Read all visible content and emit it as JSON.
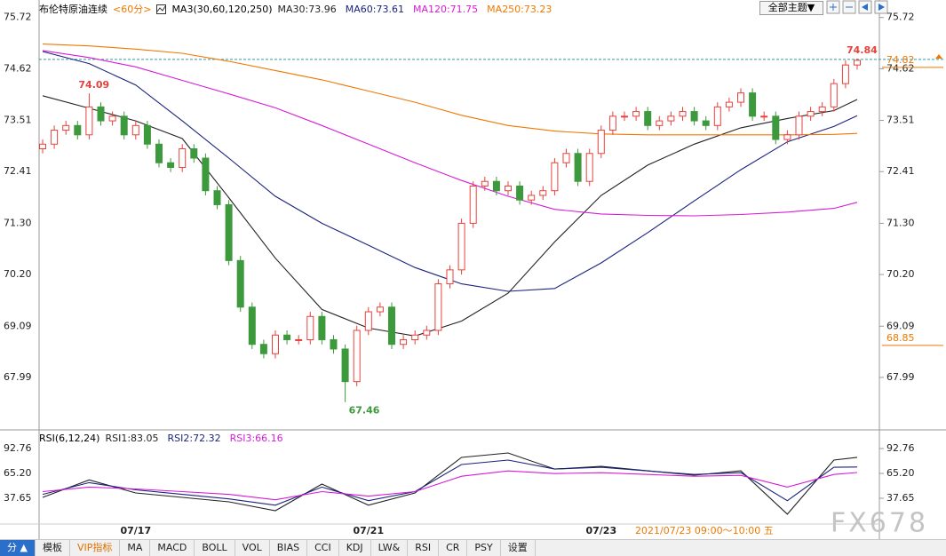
{
  "header": {
    "title": "布伦特原油连续",
    "period": "<60分>",
    "indicator": "MA3(30,60,120,250)",
    "theme_button": "全部主题▼"
  },
  "chart_data": [
    {
      "type": "candlestick",
      "categories": [
        null,
        null,
        null,
        null,
        null,
        null,
        null,
        null,
        "07/17",
        null,
        null,
        null,
        null,
        null,
        null,
        null,
        null,
        null,
        null,
        null,
        null,
        null,
        null,
        null,
        null,
        null,
        null,
        null,
        "07/21",
        null,
        null,
        null,
        null,
        null,
        null,
        null,
        null,
        null,
        null,
        null,
        null,
        null,
        null,
        null,
        null,
        null,
        null,
        null,
        "07/23",
        null,
        null,
        null,
        null,
        null,
        null,
        null,
        null,
        null,
        null,
        null,
        null,
        null,
        null,
        null,
        null,
        null,
        null,
        null,
        null,
        null,
        null
      ],
      "open": [
        72.9,
        73.0,
        73.3,
        73.4,
        73.2,
        73.8,
        73.5,
        73.6,
        73.2,
        73.4,
        73.0,
        72.6,
        72.5,
        72.9,
        72.7,
        72.0,
        71.7,
        70.5,
        69.5,
        68.7,
        68.5,
        68.9,
        68.8,
        68.8,
        69.3,
        68.8,
        68.6,
        67.9,
        69.0,
        69.4,
        69.5,
        68.7,
        68.8,
        68.9,
        69.0,
        70.0,
        70.3,
        71.3,
        72.1,
        72.2,
        72.0,
        72.1,
        71.8,
        71.9,
        72.0,
        72.6,
        72.8,
        72.2,
        72.8,
        73.3,
        73.6,
        73.6,
        73.7,
        73.4,
        73.5,
        73.6,
        73.7,
        73.5,
        73.4,
        73.8,
        73.9,
        74.1,
        73.6,
        73.6,
        73.1,
        73.2,
        73.6,
        73.7,
        73.8,
        74.3,
        74.7
      ],
      "high": [
        73.1,
        73.4,
        73.5,
        73.5,
        74.09,
        73.9,
        73.7,
        73.7,
        73.5,
        73.5,
        73.1,
        72.7,
        73.0,
        73.0,
        72.8,
        72.1,
        71.8,
        70.6,
        69.6,
        68.8,
        69.0,
        69.0,
        68.9,
        69.4,
        69.4,
        68.9,
        68.7,
        69.1,
        69.5,
        69.6,
        69.6,
        68.9,
        69.0,
        69.1,
        70.1,
        70.4,
        71.4,
        72.2,
        72.3,
        72.3,
        72.2,
        72.2,
        72.0,
        72.1,
        72.7,
        72.9,
        72.9,
        72.9,
        73.4,
        73.7,
        73.7,
        73.8,
        73.8,
        73.6,
        73.7,
        73.8,
        73.8,
        73.6,
        73.9,
        74.0,
        74.2,
        74.2,
        73.7,
        73.7,
        73.3,
        73.7,
        73.8,
        73.9,
        74.4,
        74.8,
        74.84
      ],
      "low": [
        72.8,
        72.9,
        73.2,
        73.1,
        73.1,
        73.4,
        73.4,
        73.1,
        73.1,
        72.9,
        72.5,
        72.4,
        72.4,
        72.6,
        71.9,
        71.6,
        70.4,
        69.4,
        68.6,
        68.4,
        68.4,
        68.7,
        68.7,
        68.7,
        68.7,
        68.5,
        67.46,
        67.8,
        68.9,
        69.3,
        68.6,
        68.6,
        68.7,
        68.8,
        68.9,
        69.9,
        70.2,
        71.2,
        72.0,
        71.9,
        71.9,
        71.7,
        71.7,
        71.8,
        71.9,
        72.5,
        72.1,
        72.1,
        72.7,
        73.2,
        73.5,
        73.5,
        73.3,
        73.3,
        73.4,
        73.5,
        73.4,
        73.3,
        73.3,
        73.7,
        73.8,
        73.5,
        73.5,
        73.0,
        73.0,
        73.1,
        73.5,
        73.6,
        73.7,
        74.2,
        74.6
      ],
      "close": [
        73.0,
        73.3,
        73.4,
        73.2,
        73.8,
        73.5,
        73.6,
        73.2,
        73.4,
        73.0,
        72.6,
        72.5,
        72.9,
        72.7,
        72.0,
        71.7,
        70.5,
        69.5,
        68.7,
        68.5,
        68.9,
        68.8,
        68.8,
        69.3,
        68.8,
        68.6,
        67.9,
        69.0,
        69.4,
        69.5,
        68.7,
        68.8,
        68.9,
        69.0,
        70.0,
        70.3,
        71.3,
        72.1,
        72.2,
        72.0,
        72.1,
        71.8,
        71.9,
        72.0,
        72.6,
        72.8,
        72.2,
        72.8,
        73.3,
        73.6,
        73.6,
        73.7,
        73.4,
        73.5,
        73.6,
        73.7,
        73.5,
        73.4,
        73.8,
        73.9,
        74.1,
        73.6,
        73.6,
        73.1,
        73.2,
        73.6,
        73.7,
        73.8,
        74.3,
        74.7,
        74.8
      ],
      "up_color": "#e8413c",
      "down_color": "#3c9a3c",
      "ylim": [
        66.94,
        76
      ],
      "yticks": [
        75.72,
        74.62,
        73.51,
        72.41,
        {
          "value": 71.3,
          "label": "71.30"
        },
        {
          "value": 70.2,
          "label": "70.20"
        },
        69.09,
        67.99
      ],
      "series": [
        {
          "name": "MA30:73.96",
          "color": "#222222",
          "x": [
            0,
            4,
            8,
            12,
            16,
            20,
            24,
            28,
            32,
            36,
            40,
            44,
            48,
            52,
            56,
            60,
            64,
            68,
            70
          ],
          "values": [
            74.04,
            73.77,
            73.5,
            73.12,
            71.85,
            70.55,
            69.45,
            69.05,
            68.88,
            69.2,
            69.8,
            70.9,
            71.9,
            72.55,
            73.0,
            73.35,
            73.55,
            73.72,
            73.96
          ]
        },
        {
          "name": "MA60:73.61",
          "color": "#1a237e",
          "x": [
            0,
            4,
            8,
            12,
            16,
            20,
            24,
            28,
            32,
            36,
            40,
            44,
            48,
            52,
            56,
            60,
            64,
            68,
            70
          ],
          "values": [
            74.99,
            74.73,
            74.27,
            73.5,
            72.7,
            71.88,
            71.3,
            70.83,
            70.35,
            70.0,
            69.84,
            69.9,
            70.45,
            71.1,
            71.78,
            72.45,
            73.05,
            73.38,
            73.61
          ]
        },
        {
          "name": "MA120:71.75",
          "color": "#d81bd8",
          "x": [
            0,
            4,
            8,
            12,
            16,
            20,
            24,
            28,
            32,
            36,
            40,
            44,
            48,
            52,
            56,
            60,
            64,
            68,
            70
          ],
          "values": [
            75.01,
            74.86,
            74.66,
            74.37,
            74.08,
            73.78,
            73.4,
            73.0,
            72.6,
            72.22,
            71.88,
            71.6,
            71.5,
            71.47,
            71.46,
            71.49,
            71.54,
            71.62,
            71.75
          ]
        },
        {
          "name": "MA250:73.23",
          "color": "#f07800",
          "x": [
            0,
            4,
            8,
            12,
            16,
            20,
            24,
            28,
            32,
            36,
            40,
            44,
            48,
            52,
            56,
            60,
            64,
            68,
            70
          ],
          "values": [
            75.15,
            75.11,
            75.04,
            74.95,
            74.78,
            74.58,
            74.38,
            74.14,
            73.9,
            73.62,
            73.4,
            73.28,
            73.22,
            73.2,
            73.2,
            73.2,
            73.2,
            73.21,
            73.23
          ]
        }
      ],
      "annotations": [
        {
          "x": 4,
          "value": 74.09
        },
        {
          "x": 26,
          "value": 67.46
        },
        {
          "x": 70,
          "value": 74.84
        }
      ],
      "price_markers": [
        {
          "value": 74.82,
          "color": "#f07800",
          "line_style": "dashed"
        },
        {
          "value": 68.85,
          "color": "#f07800"
        }
      ]
    },
    {
      "type": "line",
      "title": "RSI(6,12,24)",
      "time_label": "2021/07/23 09:00～10:00 五",
      "ylim": [
        9.1,
        105.55
      ],
      "yticks": [
        92.76,
        {
          "value": 65.2,
          "label": "65.20"
        },
        37.65
      ],
      "series": [
        {
          "name": "RSI1:83.05",
          "color": "#222222",
          "x": [
            0,
            4,
            8,
            12,
            16,
            20,
            24,
            28,
            32,
            36,
            40,
            44,
            48,
            52,
            56,
            60,
            64,
            68,
            70
          ],
          "values": [
            38.6,
            58,
            43.5,
            38.6,
            33.7,
            23.9,
            53.4,
            30,
            43.5,
            82.9,
            87.8,
            70,
            73,
            68.1,
            63.2,
            68.1,
            20,
            80,
            83.05
          ]
        },
        {
          "name": "RSI2:72.32",
          "color": "#1a237e",
          "x": [
            0,
            4,
            8,
            12,
            16,
            20,
            24,
            28,
            32,
            36,
            40,
            44,
            48,
            52,
            56,
            60,
            64,
            68,
            70
          ],
          "values": [
            42,
            55,
            47,
            42,
            37,
            30,
            50,
            35,
            45,
            75,
            80,
            70,
            72,
            68,
            64,
            66,
            35,
            72,
            72.32
          ]
        },
        {
          "name": "RSI3:66.16",
          "color": "#d81bd8",
          "x": [
            0,
            4,
            8,
            12,
            16,
            20,
            24,
            28,
            32,
            36,
            40,
            44,
            48,
            52,
            56,
            60,
            64,
            68,
            70
          ],
          "values": [
            45,
            50,
            48,
            45,
            42,
            36,
            45,
            40,
            45,
            62,
            68,
            65,
            66,
            64,
            62,
            63,
            50,
            64,
            66.16
          ]
        }
      ]
    }
  ],
  "toolbar": {
    "tabs": [
      "分 ▲",
      "模板",
      "VIP指标",
      "MA",
      "MACD",
      "BOLL",
      "VOL",
      "BIAS",
      "CCI",
      "KDJ",
      "LW&",
      "RSI",
      "CR",
      "PSY",
      "设置"
    ]
  },
  "watermark": "FX678"
}
